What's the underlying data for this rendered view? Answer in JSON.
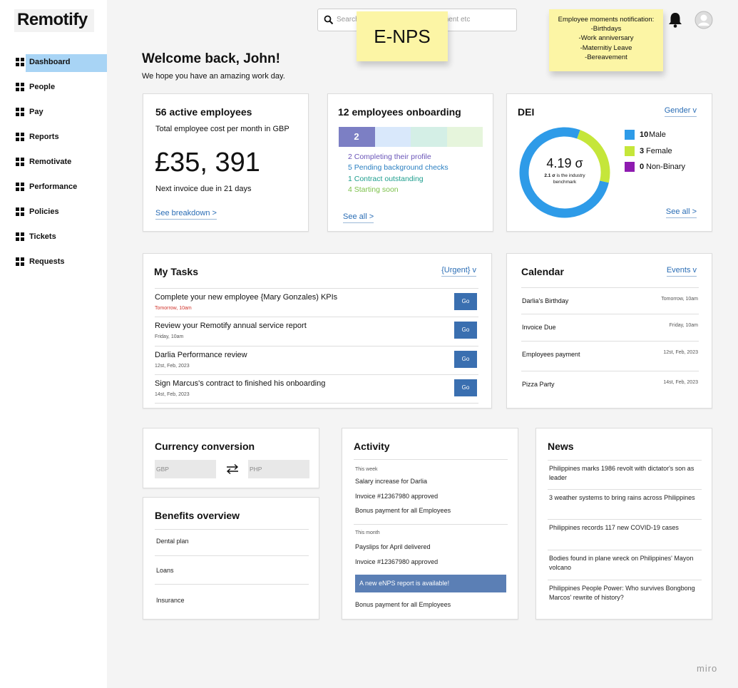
{
  "logo": "Remotify",
  "nav": [
    "Dashboard",
    "People",
    "Pay",
    "Reports",
    "Remotivate",
    "Performance",
    "Policies",
    "Tickets",
    "Requests"
  ],
  "search_placeholder": "Search employee, document, payment etc",
  "sticky_enps": "E-NPS",
  "sticky_moments": [
    "Employee moments notification:",
    "-Birthdays",
    "-Work anniversary",
    "-Maternitiy Leave",
    "-Bereavement"
  ],
  "welcome": {
    "title": "Welcome back, John!",
    "subtitle": "We hope you have an amazing work day."
  },
  "active_employees": {
    "title": "56 active employees",
    "subtitle": "Total employee cost per month in GBP",
    "amount": "£35, 391",
    "note": "Next invoice due in 21 days",
    "link": "See breakdown >"
  },
  "onboarding": {
    "title": "12 employees onboarding",
    "bar_label": "2",
    "items": [
      "2 Completing their profile",
      "5 Pending background checks",
      "1 Contract outstanding",
      "4 Starting soon"
    ],
    "link": "See all >"
  },
  "dei": {
    "title": "DEI",
    "filter": "Gender v",
    "score": "4.19 σ",
    "benchmark_value": "2.1 σ",
    "benchmark_text": "is the industry benchmark",
    "legend": [
      {
        "count": 10,
        "label": "Male",
        "color": "#2e9be8"
      },
      {
        "count": 3,
        "label": "Female",
        "color": "#c5e63a"
      },
      {
        "count": 0,
        "label": "Non-Binary",
        "color": "#8e1bb0"
      }
    ],
    "link": "See all >"
  },
  "tasks": {
    "title": "My Tasks",
    "filter": "{Urgent} v",
    "items": [
      {
        "title": "Complete your new employee {Mary Gonzales) KPIs",
        "date": "Tomorrow, 10am",
        "action": "Go"
      },
      {
        "title": "Review your Remotify annual service report",
        "date": "Friday, 10am",
        "action": "Go"
      },
      {
        "title": "Darlia Performance review",
        "date": "12st, Feb, 2023",
        "action": "Go"
      },
      {
        "title": "Sign Marcus's contract to finished his onboarding",
        "date": "14st, Feb, 2023",
        "action": "Go"
      }
    ]
  },
  "calendar": {
    "title": "Calendar",
    "filter": "Events v",
    "events": [
      {
        "name": "Darlia's Birthday",
        "date": "Tomorrow, 10am"
      },
      {
        "name": "Invoice Due",
        "date": "Friday, 10am"
      },
      {
        "name": "Employees payment",
        "date": "12st, Feb, 2023"
      },
      {
        "name": "Pizza Party",
        "date": "14st, Feb, 2023"
      }
    ]
  },
  "currency": {
    "title": "Currency conversion",
    "from": "GBP",
    "to": "PHP"
  },
  "benefits": {
    "title": "Benefits overview",
    "items": [
      "Dental plan",
      "Loans",
      "Insurance"
    ]
  },
  "activity": {
    "title": "Activity",
    "week_label": "This week",
    "week_items": [
      "Salary increase for Darlia",
      "Invoice #12367980 approved",
      "Bonus payment for all Employees"
    ],
    "month_label": "This month",
    "month_items": [
      "Payslips for April delivered",
      "Invoice #12367980 approved"
    ],
    "banner": "A new eNPS report is available!",
    "after_banner": "Bonus payment for all Employees"
  },
  "news": {
    "title": "News",
    "items": [
      "Philippines marks 1986 revolt with dictator's son as leader",
      "3 weather systems to bring rains across Philippines",
      "Philippines records 117 new COVID-19 cases",
      "Bodies found in plane wreck on Philippines' Mayon volcano",
      "Philippines People Power: Who survives Bongbong Marcos' rewrite of history?"
    ]
  },
  "watermark": "miro"
}
